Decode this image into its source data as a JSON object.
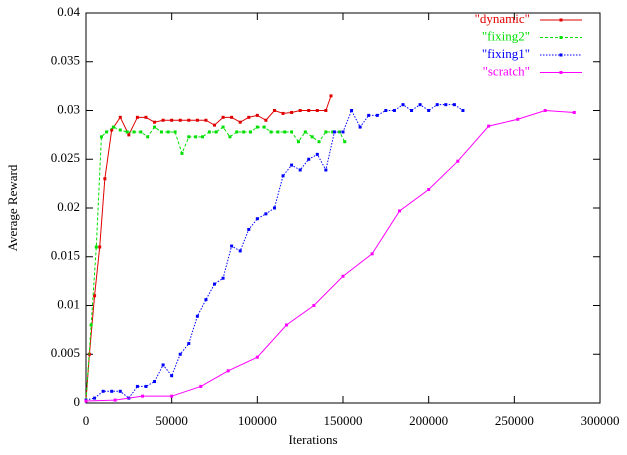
{
  "chart_data": {
    "type": "line",
    "xlabel": "Iterations",
    "ylabel": "Average Reward",
    "xlim": [
      0,
      300000
    ],
    "xticks": [
      0,
      50000,
      100000,
      150000,
      200000,
      250000,
      300000
    ],
    "ylim": [
      0,
      0.04
    ],
    "yticks": [
      0,
      0.005,
      0.01,
      0.015,
      0.02,
      0.025,
      0.03,
      0.035,
      0.04
    ],
    "legend": "upper right",
    "series": [
      {
        "name": "\"dynamic\"",
        "color": "#e00000",
        "dash": "solid",
        "x": [
          0,
          2000,
          5000,
          8000,
          11000,
          15000,
          20000,
          25000,
          30000,
          35000,
          40000,
          45000,
          50000,
          55000,
          60000,
          65000,
          70000,
          75000,
          80000,
          85000,
          90000,
          95000,
          100000,
          105000,
          110000,
          115000,
          120000,
          125000,
          130000,
          135000,
          140000,
          143000
        ],
        "values": [
          0.0003,
          0.005,
          0.011,
          0.016,
          0.023,
          0.028,
          0.0293,
          0.0275,
          0.0293,
          0.0293,
          0.0288,
          0.029,
          0.029,
          0.029,
          0.029,
          0.029,
          0.029,
          0.0285,
          0.0293,
          0.0293,
          0.0288,
          0.0293,
          0.0295,
          0.029,
          0.03,
          0.0297,
          0.0298,
          0.03,
          0.03,
          0.03,
          0.03,
          0.0315
        ]
      },
      {
        "name": "\"fixing2\"",
        "color": "#00e000",
        "dash": "dashed",
        "x": [
          0,
          3000,
          6000,
          9000,
          12000,
          16000,
          20000,
          24000,
          28000,
          32000,
          36000,
          40000,
          44000,
          48000,
          52000,
          56000,
          60000,
          64000,
          68000,
          72000,
          76000,
          80000,
          84000,
          88000,
          92000,
          96000,
          100000,
          104000,
          108000,
          112000,
          116000,
          120000,
          124000,
          128000,
          132000,
          136000,
          140000,
          144000,
          148000,
          151000
        ],
        "values": [
          0.0003,
          0.008,
          0.016,
          0.0273,
          0.0278,
          0.0283,
          0.028,
          0.0278,
          0.0278,
          0.0278,
          0.0273,
          0.0283,
          0.0278,
          0.0278,
          0.0278,
          0.0256,
          0.0273,
          0.0273,
          0.0273,
          0.0278,
          0.0278,
          0.0283,
          0.0273,
          0.0278,
          0.0278,
          0.0278,
          0.0283,
          0.0283,
          0.0278,
          0.0278,
          0.0278,
          0.0278,
          0.0268,
          0.0278,
          0.0273,
          0.0268,
          0.0278,
          0.0278,
          0.0278,
          0.0268
        ]
      },
      {
        "name": "\"fixing1\"",
        "color": "#0000ff",
        "dash": "dotted",
        "x": [
          0,
          5000,
          10000,
          15000,
          20000,
          25000,
          30000,
          35000,
          40000,
          45000,
          50000,
          55000,
          60000,
          65000,
          70000,
          75000,
          80000,
          85000,
          90000,
          95000,
          100000,
          105000,
          110000,
          115000,
          120000,
          125000,
          130000,
          135000,
          140000,
          145000,
          150000,
          155000,
          160000,
          165000,
          170000,
          175000,
          180000,
          185000,
          190000,
          195000,
          200000,
          205000,
          210000,
          215000,
          220000
        ],
        "values": [
          0.0003,
          0.0005,
          0.0012,
          0.0012,
          0.0012,
          0.0005,
          0.0017,
          0.0017,
          0.0022,
          0.0039,
          0.0028,
          0.005,
          0.0061,
          0.0089,
          0.0106,
          0.0122,
          0.0128,
          0.0161,
          0.0156,
          0.0178,
          0.0189,
          0.0194,
          0.02,
          0.0233,
          0.0244,
          0.0239,
          0.025,
          0.0255,
          0.0239,
          0.0278,
          0.0278,
          0.03,
          0.0283,
          0.0295,
          0.0295,
          0.03,
          0.03,
          0.0306,
          0.03,
          0.0306,
          0.03,
          0.0306,
          0.0306,
          0.0306,
          0.03
        ]
      },
      {
        "name": "\"scratch\"",
        "color": "#ff00ff",
        "dash": "solid",
        "x": [
          0,
          17000,
          33000,
          50000,
          67000,
          83000,
          100000,
          117000,
          133000,
          150000,
          167000,
          183000,
          200000,
          217000,
          235000,
          252000,
          268000,
          285000
        ],
        "values": [
          0.0002,
          0.0003,
          0.0007,
          0.0007,
          0.0017,
          0.0033,
          0.0047,
          0.008,
          0.01,
          0.013,
          0.0153,
          0.0197,
          0.0219,
          0.0248,
          0.0284,
          0.0291,
          0.03,
          0.0298
        ]
      }
    ]
  }
}
